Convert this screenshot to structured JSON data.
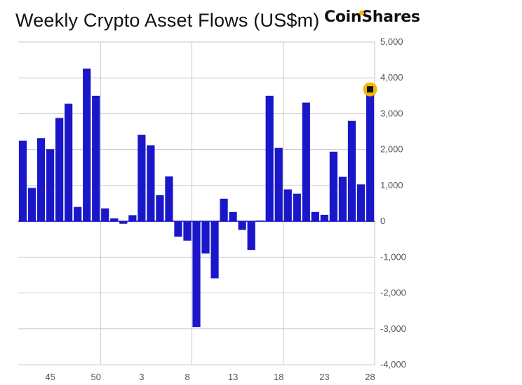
{
  "header": {
    "title": "Weekly Crypto Asset Flows (US$m)",
    "logo": "CoinShares"
  },
  "colors": {
    "bar": "#1a17c9",
    "grid": "#c8c8c8",
    "zero_line": "#1a17c9",
    "highlight": "#f5b800",
    "highlight_inner": "#111111"
  },
  "chart_data": {
    "type": "bar",
    "title": "Weekly Crypto Asset Flows (US$m)",
    "xlabel": "",
    "ylabel": "US$m",
    "ylim": [
      -4000,
      5000
    ],
    "y_ticks": [
      5000,
      4000,
      3000,
      2000,
      1000,
      0,
      -1000,
      -2000,
      -3000,
      -4000
    ],
    "y_tick_labels": [
      "5,000",
      "4,000",
      "3,000",
      "2,000",
      "1,000",
      "0",
      "-1,000",
      "-2,000",
      "-3,000",
      "-4,000"
    ],
    "y_axis_position": "right",
    "grid": true,
    "x_tick_labels": [
      {
        "label": "45",
        "index": 3
      },
      {
        "label": "50",
        "index": 8
      },
      {
        "label": "3",
        "index": 13
      },
      {
        "label": "8",
        "index": 18
      },
      {
        "label": "13",
        "index": 23
      },
      {
        "label": "18",
        "index": 28
      },
      {
        "label": "23",
        "index": 33
      },
      {
        "label": "28",
        "index": 38
      }
    ],
    "x_gridline_indices": [
      8.5,
      18.5,
      28.5
    ],
    "values": [
      2250,
      930,
      2320,
      2010,
      2880,
      3280,
      400,
      4260,
      3500,
      360,
      80,
      -70,
      170,
      2410,
      2120,
      730,
      1250,
      -430,
      -540,
      -2950,
      -900,
      -1590,
      630,
      260,
      -240,
      -800,
      20,
      3500,
      2050,
      890,
      770,
      3310,
      260,
      180,
      1940,
      1240,
      2800,
      1030,
      3680
    ],
    "highlighted_index": 38
  }
}
